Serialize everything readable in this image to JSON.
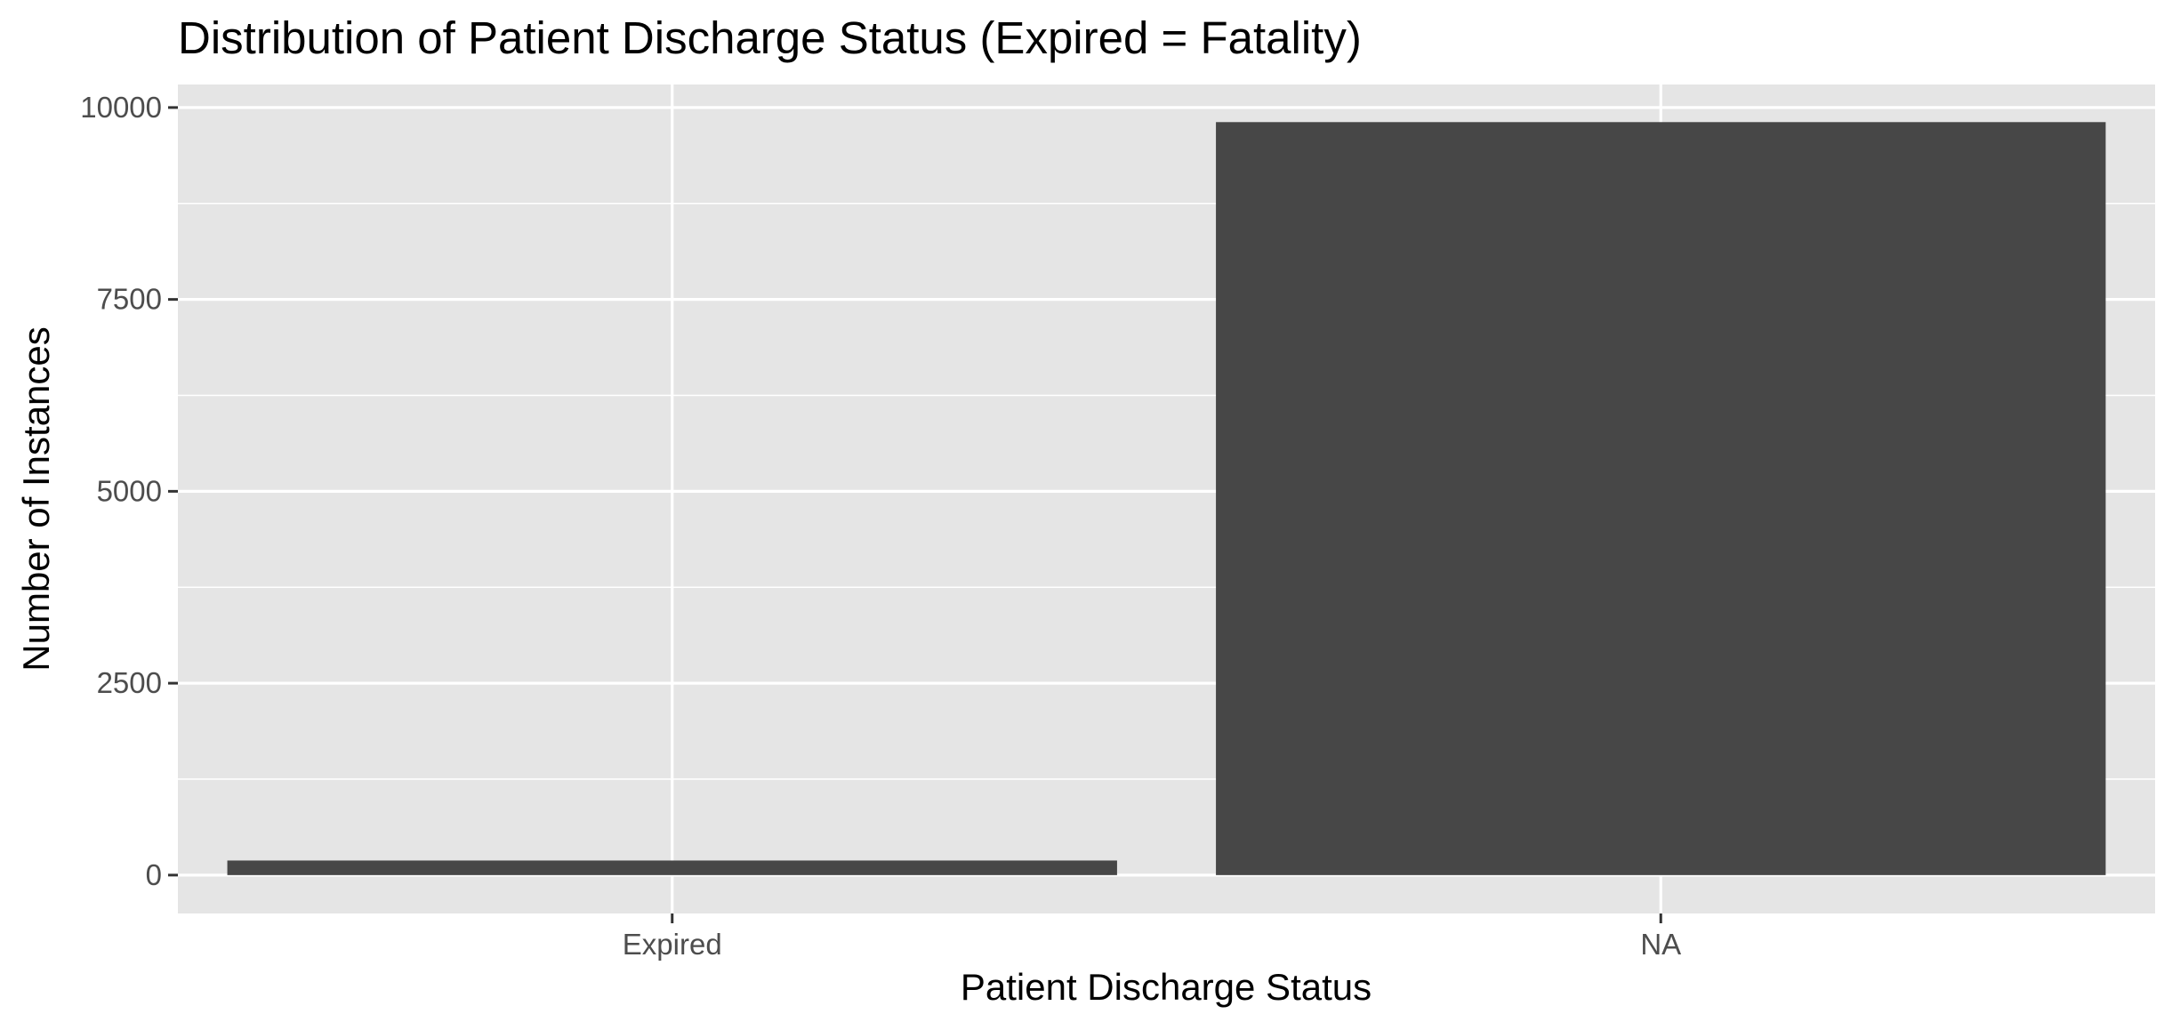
{
  "chart_data": {
    "type": "bar",
    "title": "Distribution of Patient Discharge Status (Expired = Fatality)",
    "xlabel": "Patient Discharge Status",
    "ylabel": "Number of Instances",
    "categories": [
      "Expired",
      "NA"
    ],
    "values": [
      190,
      9810
    ],
    "ylim": [
      -500,
      10300
    ],
    "yticks": [
      0,
      2500,
      5000,
      7500,
      10000
    ],
    "ytick_labels": [
      "0",
      "2500",
      "5000",
      "7500",
      "10000"
    ],
    "grid": true,
    "legend": "none",
    "colors": {
      "bar": "#474747",
      "panel_background": "#e5e5e5",
      "grid": "#ffffff",
      "tick_label": "#4d4d4d",
      "text": "#000000"
    }
  }
}
